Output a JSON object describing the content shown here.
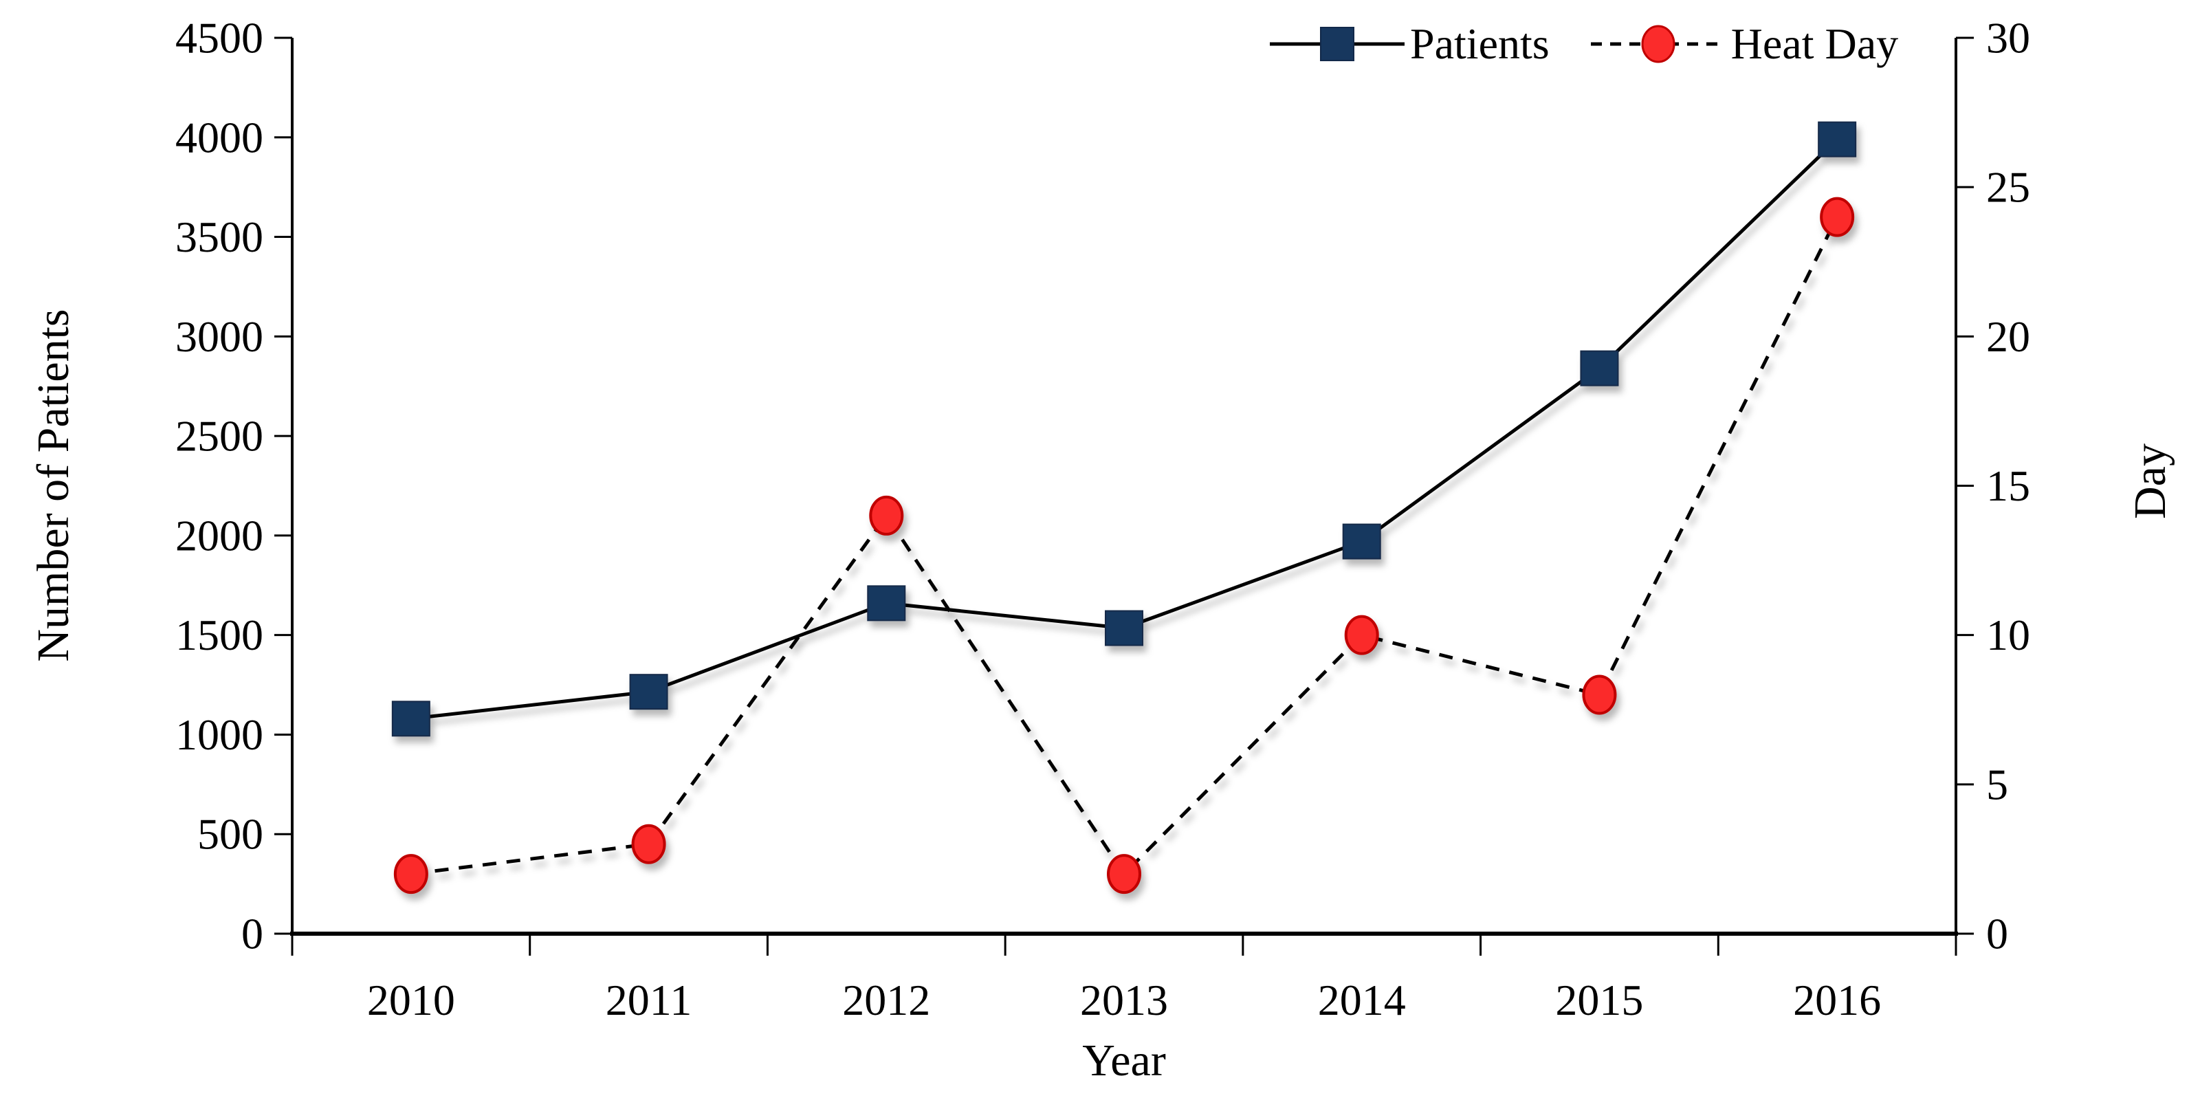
{
  "page": {
    "background_color": "#ffffff",
    "text_color": "#000000"
  },
  "chart_data": {
    "type": "line",
    "title": "",
    "categories": [
      "2010",
      "2011",
      "2012",
      "2013",
      "2014",
      "2015",
      "2016"
    ],
    "series": [
      {
        "name": "Patients",
        "axis": "left",
        "values": [
          1080,
          1215,
          1660,
          1535,
          1970,
          2840,
          3990
        ],
        "line_style": "solid",
        "line_color": "#000000",
        "marker": "square",
        "marker_fill": "#17375E",
        "marker_stroke": "#12294a"
      },
      {
        "name": "Heat Day",
        "axis": "right",
        "values": [
          2,
          3,
          14,
          2,
          10,
          8,
          24
        ],
        "line_style": "dashed",
        "line_color": "#000000",
        "marker": "circle",
        "marker_fill": "#FB2B2B",
        "marker_stroke": "#C00000"
      }
    ],
    "x_axis": {
      "label": "Year",
      "tick_position": "between-categories"
    },
    "y_axis_left": {
      "label": "Number of Patients",
      "min": 0,
      "max": 4500,
      "step": 500,
      "ticks": [
        "0",
        "500",
        "1000",
        "1500",
        "2000",
        "2500",
        "3000",
        "3500",
        "4000",
        "4500"
      ]
    },
    "y_axis_right": {
      "label": "Day",
      "min": 0,
      "max": 30,
      "step": 5,
      "ticks": [
        "0",
        "5",
        "10",
        "15",
        "20",
        "25",
        "30"
      ]
    },
    "legend_position": "top-right",
    "grid": false
  }
}
